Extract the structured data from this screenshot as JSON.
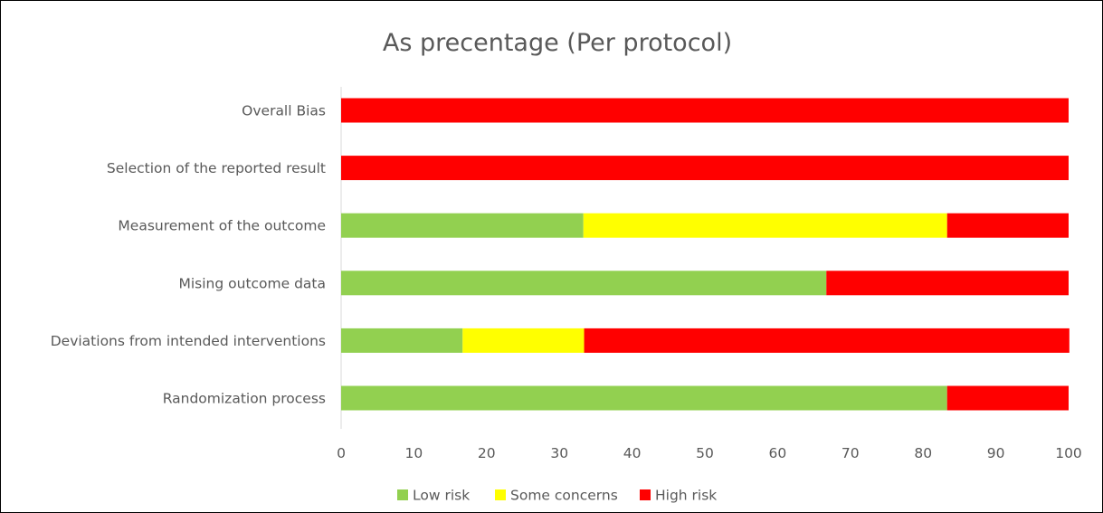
{
  "chart_data": {
    "type": "bar",
    "orientation": "horizontal",
    "stacked": true,
    "title": "As precentage (Per protocol)",
    "xlabel": "",
    "ylabel": "",
    "xlim": [
      0,
      100
    ],
    "x_ticks": [
      "0",
      "10",
      "20",
      "30",
      "40",
      "50",
      "60",
      "70",
      "80",
      "90",
      "100"
    ],
    "grid": false,
    "legend_position": "bottom",
    "categories": [
      "Overall Bias",
      "Selection of the reported result",
      "Measurement of the outcome",
      "Mising outcome data",
      "Deviations from intended interventions",
      "Randomization process"
    ],
    "series": [
      {
        "name": "Low risk",
        "color": "#92d050",
        "values": [
          0,
          0,
          33.3,
          66.7,
          16.7,
          83.3
        ]
      },
      {
        "name": "Some concerns",
        "color": "#ffff00",
        "values": [
          0,
          0,
          50,
          0,
          16.7,
          0
        ]
      },
      {
        "name": "High risk",
        "color": "#ff0000",
        "values": [
          100,
          100,
          16.7,
          33.3,
          66.7,
          16.7
        ]
      }
    ]
  }
}
